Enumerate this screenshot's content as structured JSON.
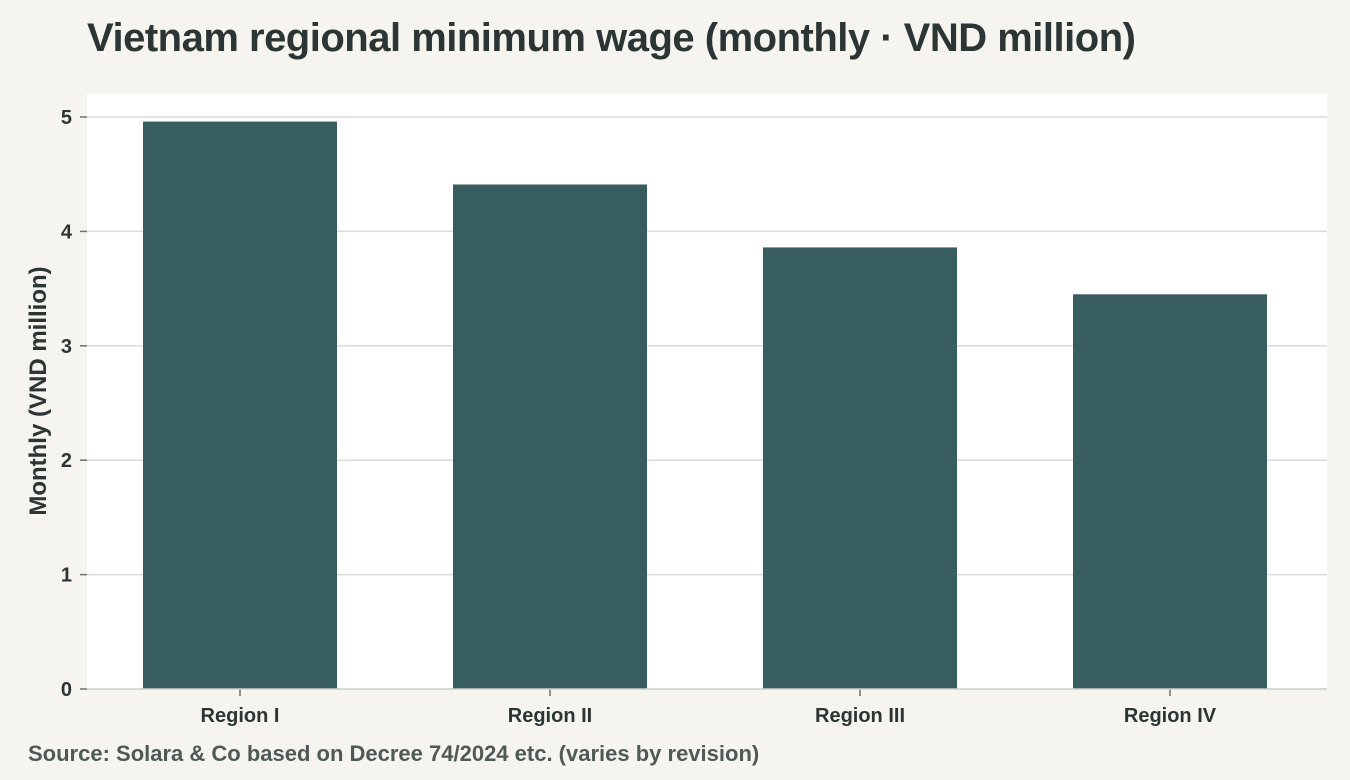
{
  "title": "Vietnam regional minimum wage (monthly · VND million)",
  "source": "Source: Solara & Co based on Decree 74/2024 etc. (varies by revision)",
  "colors": {
    "background": "#f5f4ef",
    "plot_background": "#ffffff",
    "bar": "#385d5e",
    "grid": "#d8dcdb",
    "text": "#2b3533"
  },
  "chart_data": {
    "type": "bar",
    "title": "Vietnam regional minimum wage (monthly · VND million)",
    "xlabel": "",
    "ylabel": "Monthly (VND million)",
    "categories": [
      "Region I",
      "Region II",
      "Region III",
      "Region IV"
    ],
    "values": [
      4.96,
      4.41,
      3.86,
      3.45
    ],
    "ylim": [
      0,
      5.2
    ],
    "yticks": [
      0,
      1,
      2,
      3,
      4,
      5
    ],
    "grid": true,
    "legend": "none"
  }
}
